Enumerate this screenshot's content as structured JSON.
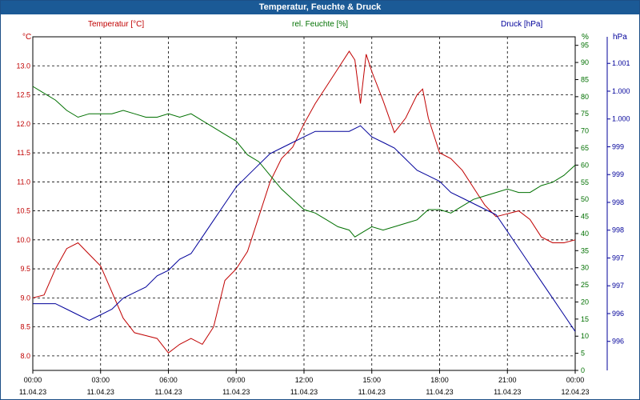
{
  "window": {
    "title": "Temperatur, Feuchte & Druck"
  },
  "chart_data": {
    "type": "line",
    "title": "Temperatur, Feuchte & Druck",
    "grid": true,
    "legend": "top header labels",
    "x_ticks": [
      {
        "time": "00:00",
        "date": "11.04.23"
      },
      {
        "time": "03:00",
        "date": "11.04.23"
      },
      {
        "time": "06:00",
        "date": "11.04.23"
      },
      {
        "time": "09:00",
        "date": "11.04.23"
      },
      {
        "time": "12:00",
        "date": "11.04.23"
      },
      {
        "time": "15:00",
        "date": "11.04.23"
      },
      {
        "time": "18:00",
        "date": "11.04.23"
      },
      {
        "time": "21:00",
        "date": "11.04.23"
      },
      {
        "time": "00:00",
        "date": "12.04.23"
      }
    ],
    "axes": {
      "temperature": {
        "label": "Temperatur [°C]",
        "unit": "°C",
        "color": "#c00000",
        "ylim": [
          7.75,
          13.5
        ],
        "ticks": [
          "8.0",
          "8.5",
          "9.0",
          "9.5",
          "10.0",
          "10.5",
          "11.0",
          "11.5",
          "12.0",
          "12.5",
          "13.0"
        ]
      },
      "humidity": {
        "label": "rel. Feuchte [%]",
        "unit": "%",
        "color": "#007000",
        "ylim": [
          0,
          97.5
        ],
        "ticks": [
          "0",
          "5",
          "10",
          "15",
          "20",
          "25",
          "30",
          "35",
          "40",
          "45",
          "50",
          "55",
          "60",
          "65",
          "70",
          "75",
          "80",
          "85",
          "90",
          "95"
        ]
      },
      "pressure": {
        "label": "Druck [hPa]",
        "unit": "hPa",
        "color": "#00009a",
        "ticks": [
          "996",
          "996",
          "997",
          "997",
          "998",
          "998",
          "999",
          "999",
          "1.000",
          "1.000",
          "1.001"
        ]
      }
    },
    "series": [
      {
        "name": "Temperatur [°C]",
        "axis": "temperature",
        "color": "#c00000",
        "x": [
          0,
          0.5,
          1,
          1.5,
          2,
          2.5,
          3,
          3.5,
          4,
          4.5,
          5,
          5.5,
          6,
          6.5,
          7,
          7.5,
          8,
          8.5,
          9,
          9.5,
          10,
          10.5,
          11,
          11.5,
          12,
          12.5,
          13,
          13.5,
          14,
          14.25,
          14.5,
          14.75,
          15,
          15.5,
          16,
          16.5,
          17,
          17.25,
          17.5,
          18,
          18.5,
          19,
          19.5,
          20,
          20.5,
          21,
          21.5,
          22,
          22.5,
          23,
          23.5,
          24
        ],
        "values": [
          9.0,
          9.05,
          9.5,
          9.85,
          9.95,
          9.75,
          9.55,
          9.1,
          8.65,
          8.4,
          8.35,
          8.3,
          8.05,
          8.2,
          8.3,
          8.2,
          8.5,
          9.3,
          9.5,
          9.8,
          10.4,
          11.0,
          11.4,
          11.6,
          12.0,
          12.35,
          12.65,
          12.95,
          13.25,
          13.1,
          12.35,
          13.2,
          12.9,
          12.4,
          11.85,
          12.1,
          12.5,
          12.6,
          12.1,
          11.5,
          11.4,
          11.2,
          10.9,
          10.6,
          10.4,
          10.45,
          10.5,
          10.35,
          10.05,
          9.95,
          9.95,
          10.0
        ]
      },
      {
        "name": "rel. Feuchte [%]",
        "axis": "humidity",
        "color": "#007000",
        "x": [
          0,
          0.5,
          1,
          1.5,
          2,
          2.5,
          3,
          3.5,
          4,
          4.5,
          5,
          5.5,
          6,
          6.5,
          7,
          7.5,
          8,
          8.5,
          9,
          9.5,
          10,
          10.5,
          11,
          11.5,
          12,
          12.5,
          13,
          13.5,
          14,
          14.25,
          14.5,
          15,
          15.5,
          16,
          16.5,
          17,
          17.5,
          18,
          18.5,
          19,
          19.5,
          20,
          20.5,
          21,
          21.5,
          22,
          22.5,
          23,
          23.5,
          24
        ],
        "values": [
          83,
          81,
          79,
          76,
          74,
          75,
          75,
          75,
          76,
          75,
          74,
          74,
          75,
          74,
          75,
          73,
          71,
          69,
          67,
          63,
          61,
          57,
          53,
          50,
          47,
          46,
          44,
          42,
          41,
          39,
          40,
          42,
          41,
          42,
          43,
          44,
          47,
          47,
          46,
          48,
          50,
          51,
          52,
          53,
          52,
          52,
          54,
          55,
          57,
          60
        ]
      },
      {
        "name": "Druck [hPa]",
        "axis": "pressure",
        "color": "#00009a",
        "x": [
          0,
          0.5,
          1,
          1.5,
          2,
          2.5,
          3,
          3.5,
          4,
          4.5,
          5,
          5.5,
          6,
          6.5,
          7,
          7.5,
          8,
          8.5,
          9,
          9.5,
          10,
          10.5,
          11,
          11.5,
          12,
          12.5,
          13,
          13.5,
          14,
          14.5,
          15,
          15.5,
          16,
          16.5,
          17,
          17.5,
          18,
          18.5,
          19,
          19.5,
          20,
          20.5,
          21,
          21.5,
          22,
          22.5,
          23,
          23.5,
          24
        ],
        "values": [
          996.7,
          996.7,
          996.7,
          996.6,
          996.5,
          996.4,
          996.5,
          996.6,
          996.8,
          996.9,
          997.0,
          997.2,
          997.3,
          997.5,
          997.6,
          997.9,
          998.2,
          998.5,
          998.8,
          999.0,
          999.2,
          999.4,
          999.5,
          999.6,
          999.7,
          999.8,
          999.8,
          999.8,
          999.8,
          999.9,
          999.7,
          999.6,
          999.5,
          999.3,
          999.1,
          999.0,
          998.9,
          998.7,
          998.6,
          998.5,
          998.4,
          998.3,
          998.0,
          997.7,
          997.4,
          997.1,
          996.8,
          996.5,
          996.2
        ]
      }
    ]
  }
}
